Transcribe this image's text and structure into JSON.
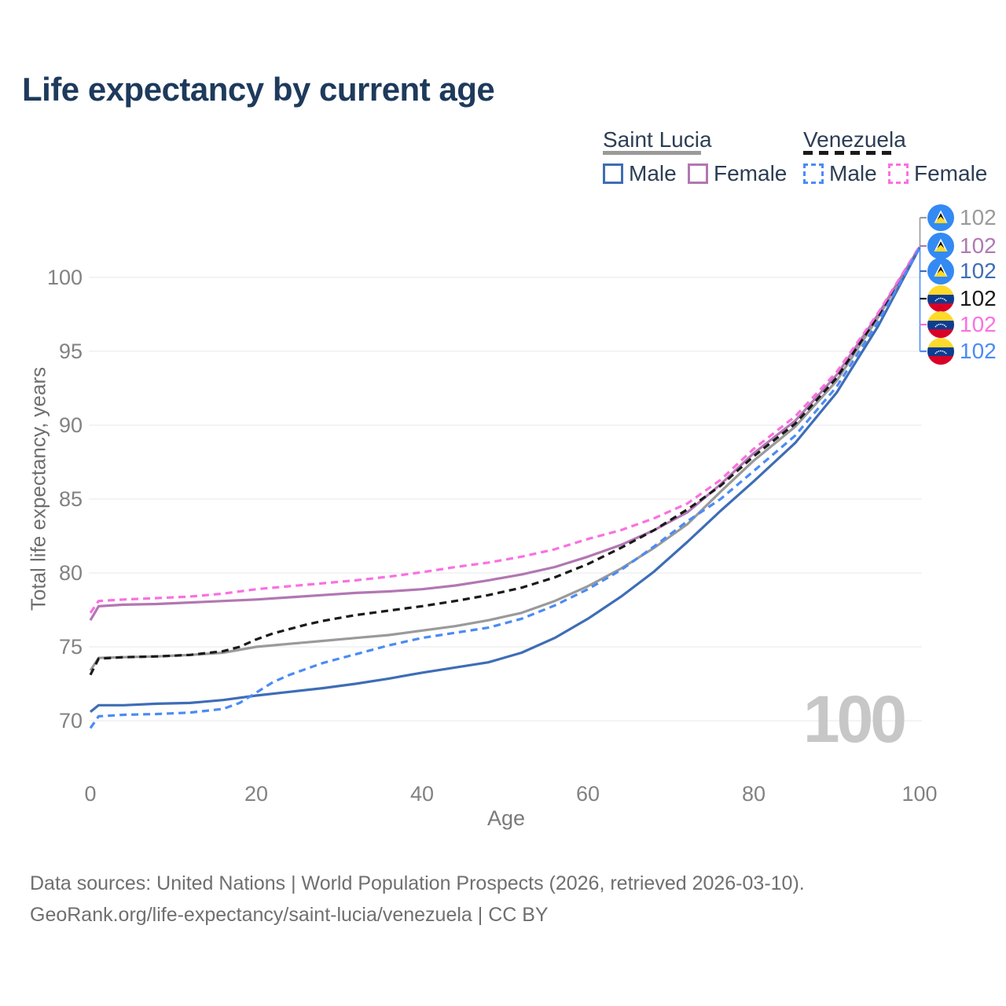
{
  "title": "Life expectancy by current age",
  "watermark": {
    "current_age": "100"
  },
  "legend": {
    "groups": [
      {
        "name": "Saint Lucia",
        "line_style": "solid",
        "underline_color": "#9a9a9a",
        "items": [
          {
            "label": "Male",
            "color": "#3e6db6"
          },
          {
            "label": "Female",
            "color": "#b277b2"
          }
        ]
      },
      {
        "name": "Venezuela",
        "line_style": "dashed",
        "underline_color": "#1a1a1a",
        "items": [
          {
            "label": "Male",
            "color": "#4b8bf5"
          },
          {
            "label": "Female",
            "color": "#fa70e1"
          }
        ]
      }
    ]
  },
  "axes": {
    "x": {
      "label": "Age",
      "ticks": [
        0,
        20,
        40,
        60,
        80,
        100
      ]
    },
    "y": {
      "label": "Total life expectancy, years",
      "ticks": [
        70,
        75,
        80,
        85,
        90,
        95,
        100
      ]
    }
  },
  "end_labels": [
    {
      "flag": "saint-lucia",
      "series": "Saint Lucia Total",
      "value": "102",
      "color": "#9a9a9a"
    },
    {
      "flag": "saint-lucia",
      "series": "Saint Lucia Female",
      "value": "102",
      "color": "#b277b2"
    },
    {
      "flag": "saint-lucia",
      "series": "Saint Lucia Male",
      "value": "102",
      "color": "#3e6db6"
    },
    {
      "flag": "venezuela",
      "series": "Venezuela Total",
      "value": "102",
      "color": "#1a1a1a"
    },
    {
      "flag": "venezuela",
      "series": "Venezuela Female",
      "value": "102",
      "color": "#fa70e1"
    },
    {
      "flag": "venezuela",
      "series": "Venezuela Male",
      "value": "102",
      "color": "#4b8bf5"
    }
  ],
  "footer": {
    "line1": "Data sources: United Nations | World Population Prospects (2026, retrieved 2026-03-10).",
    "line2": "GeoRank.org/life-expectancy/saint-lucia/venezuela | CC BY"
  },
  "chart_data": {
    "type": "line",
    "title": "Life expectancy by current age",
    "xlabel": "Age",
    "ylabel": "Total life expectancy, years",
    "xlim": [
      0,
      100
    ],
    "ylim": [
      67,
      103
    ],
    "grid": "horizontal",
    "legend_position": "top-right",
    "series": [
      {
        "id": "sl-total",
        "name": "Saint Lucia Total",
        "color": "#9a9a9a",
        "dashed": false,
        "points": [
          [
            0,
            73.4
          ],
          [
            1,
            74.25
          ],
          [
            4,
            74.3
          ],
          [
            8,
            74.35
          ],
          [
            12,
            74.45
          ],
          [
            16,
            74.6
          ],
          [
            20,
            75.0
          ],
          [
            24,
            75.2
          ],
          [
            28,
            75.4
          ],
          [
            32,
            75.6
          ],
          [
            36,
            75.8
          ],
          [
            40,
            76.1
          ],
          [
            44,
            76.4
          ],
          [
            48,
            76.8
          ],
          [
            52,
            77.3
          ],
          [
            56,
            78.1
          ],
          [
            60,
            79.1
          ],
          [
            64,
            80.3
          ],
          [
            68,
            81.7
          ],
          [
            72,
            83.3
          ],
          [
            76,
            85.5
          ],
          [
            80,
            87.6
          ],
          [
            85,
            89.9
          ],
          [
            90,
            93.0
          ],
          [
            95,
            97.3
          ],
          [
            100,
            102
          ]
        ]
      },
      {
        "id": "sl-female",
        "name": "Saint Lucia Female",
        "color": "#b277b2",
        "dashed": false,
        "points": [
          [
            0,
            76.8
          ],
          [
            1,
            77.75
          ],
          [
            4,
            77.85
          ],
          [
            8,
            77.9
          ],
          [
            12,
            78.0
          ],
          [
            16,
            78.1
          ],
          [
            20,
            78.2
          ],
          [
            24,
            78.35
          ],
          [
            28,
            78.5
          ],
          [
            32,
            78.65
          ],
          [
            36,
            78.75
          ],
          [
            40,
            78.9
          ],
          [
            44,
            79.15
          ],
          [
            48,
            79.5
          ],
          [
            52,
            79.9
          ],
          [
            56,
            80.4
          ],
          [
            60,
            81.1
          ],
          [
            64,
            81.9
          ],
          [
            68,
            82.9
          ],
          [
            72,
            84.1
          ],
          [
            76,
            86.0
          ],
          [
            80,
            88.1
          ],
          [
            85,
            90.3
          ],
          [
            90,
            93.4
          ],
          [
            95,
            97.5
          ],
          [
            100,
            102.05
          ]
        ]
      },
      {
        "id": "sl-male",
        "name": "Saint Lucia Male",
        "color": "#3e6db6",
        "dashed": false,
        "points": [
          [
            0,
            70.6
          ],
          [
            1,
            71.05
          ],
          [
            4,
            71.05
          ],
          [
            8,
            71.15
          ],
          [
            12,
            71.2
          ],
          [
            16,
            71.4
          ],
          [
            20,
            71.7
          ],
          [
            24,
            71.95
          ],
          [
            28,
            72.2
          ],
          [
            32,
            72.5
          ],
          [
            36,
            72.85
          ],
          [
            40,
            73.25
          ],
          [
            44,
            73.6
          ],
          [
            48,
            73.95
          ],
          [
            52,
            74.6
          ],
          [
            56,
            75.6
          ],
          [
            60,
            76.9
          ],
          [
            64,
            78.4
          ],
          [
            68,
            80.1
          ],
          [
            72,
            82.1
          ],
          [
            76,
            84.2
          ],
          [
            80,
            86.2
          ],
          [
            85,
            88.8
          ],
          [
            90,
            92.2
          ],
          [
            95,
            96.7
          ],
          [
            100,
            102
          ]
        ]
      },
      {
        "id": "ve-total",
        "name": "Venezuela Total",
        "color": "#1a1a1a",
        "dashed": true,
        "points": [
          [
            0,
            73.1
          ],
          [
            1,
            74.2
          ],
          [
            4,
            74.3
          ],
          [
            8,
            74.35
          ],
          [
            12,
            74.45
          ],
          [
            16,
            74.7
          ],
          [
            18,
            75.0
          ],
          [
            20,
            75.5
          ],
          [
            22,
            75.9
          ],
          [
            24,
            76.2
          ],
          [
            26,
            76.5
          ],
          [
            28,
            76.75
          ],
          [
            30,
            76.95
          ],
          [
            32,
            77.15
          ],
          [
            36,
            77.45
          ],
          [
            40,
            77.75
          ],
          [
            44,
            78.1
          ],
          [
            48,
            78.5
          ],
          [
            52,
            79.0
          ],
          [
            56,
            79.7
          ],
          [
            60,
            80.6
          ],
          [
            64,
            81.7
          ],
          [
            68,
            82.9
          ],
          [
            72,
            84.3
          ],
          [
            76,
            85.9
          ],
          [
            80,
            87.9
          ],
          [
            85,
            90.1
          ],
          [
            90,
            93.2
          ],
          [
            95,
            97.4
          ],
          [
            100,
            102.05
          ]
        ]
      },
      {
        "id": "ve-female",
        "name": "Venezuela Female",
        "color": "#fa70e1",
        "dashed": true,
        "points": [
          [
            0,
            77.3
          ],
          [
            1,
            78.1
          ],
          [
            4,
            78.2
          ],
          [
            8,
            78.3
          ],
          [
            12,
            78.4
          ],
          [
            16,
            78.6
          ],
          [
            20,
            78.9
          ],
          [
            24,
            79.1
          ],
          [
            28,
            79.3
          ],
          [
            32,
            79.5
          ],
          [
            36,
            79.75
          ],
          [
            40,
            80.05
          ],
          [
            44,
            80.4
          ],
          [
            48,
            80.7
          ],
          [
            52,
            81.1
          ],
          [
            56,
            81.6
          ],
          [
            60,
            82.3
          ],
          [
            64,
            82.9
          ],
          [
            68,
            83.7
          ],
          [
            72,
            84.7
          ],
          [
            76,
            86.3
          ],
          [
            80,
            88.4
          ],
          [
            85,
            90.6
          ],
          [
            90,
            93.6
          ],
          [
            95,
            97.6
          ],
          [
            100,
            102.1
          ]
        ]
      },
      {
        "id": "ve-male",
        "name": "Venezuela Male",
        "color": "#4b8bf5",
        "dashed": true,
        "points": [
          [
            0,
            69.5
          ],
          [
            1,
            70.3
          ],
          [
            4,
            70.4
          ],
          [
            8,
            70.45
          ],
          [
            12,
            70.55
          ],
          [
            16,
            70.8
          ],
          [
            18,
            71.2
          ],
          [
            20,
            71.9
          ],
          [
            22,
            72.6
          ],
          [
            24,
            73.1
          ],
          [
            26,
            73.5
          ],
          [
            28,
            73.9
          ],
          [
            30,
            74.2
          ],
          [
            32,
            74.5
          ],
          [
            34,
            74.8
          ],
          [
            36,
            75.1
          ],
          [
            40,
            75.6
          ],
          [
            44,
            75.95
          ],
          [
            48,
            76.3
          ],
          [
            52,
            76.9
          ],
          [
            56,
            77.8
          ],
          [
            60,
            78.9
          ],
          [
            64,
            80.2
          ],
          [
            68,
            81.8
          ],
          [
            72,
            83.5
          ],
          [
            76,
            85.0
          ],
          [
            80,
            86.9
          ],
          [
            85,
            89.3
          ],
          [
            90,
            92.6
          ],
          [
            95,
            97.0
          ],
          [
            100,
            102
          ]
        ]
      }
    ]
  }
}
